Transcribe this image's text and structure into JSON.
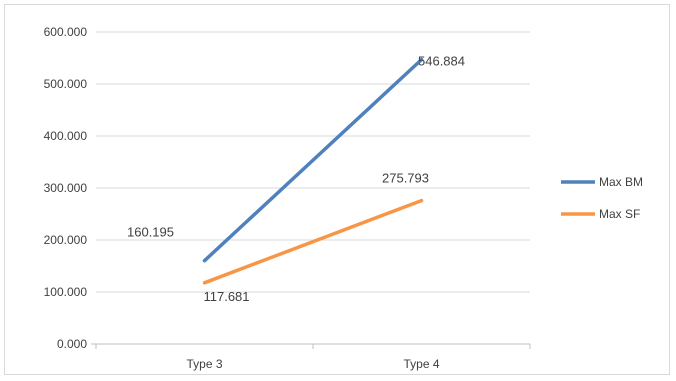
{
  "chart_data": {
    "type": "line",
    "categories": [
      "Type 3",
      "Type 4"
    ],
    "series": [
      {
        "name": "Max BM",
        "values": [
          160.195,
          546.884
        ],
        "color": "#4f81bd",
        "labels": [
          "160.195",
          "546.884"
        ]
      },
      {
        "name": "Max SF",
        "values": [
          117.681,
          275.793
        ],
        "color": "#f79646",
        "labels": [
          "117.681",
          "275.793"
        ]
      }
    ],
    "ylim": [
      0,
      600
    ],
    "yticks": [
      "0.000",
      "100.000",
      "200.000",
      "300.000",
      "400.000",
      "500.000",
      "600.000"
    ],
    "title": "",
    "xlabel": "",
    "ylabel": "",
    "grid": true,
    "legend": "right"
  }
}
